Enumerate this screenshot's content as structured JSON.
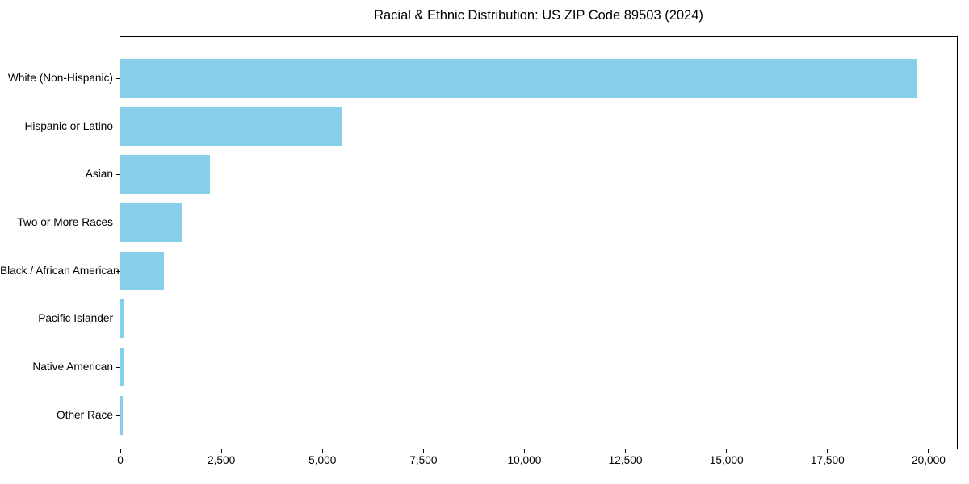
{
  "chart_data": {
    "type": "bar",
    "orientation": "horizontal",
    "title": "Racial & Ethnic Distribution: US ZIP Code 89503 (2024)",
    "xlabel": "",
    "ylabel": "",
    "categories": [
      "White (Non-Hispanic)",
      "Hispanic or Latino",
      "Asian",
      "Two or More Races",
      "Black / African American",
      "Pacific Islander",
      "Native American",
      "Other Race"
    ],
    "values": [
      19730,
      5470,
      2220,
      1540,
      1070,
      95,
      75,
      55
    ],
    "xlim": [
      0,
      20700
    ],
    "xticks": [
      0,
      2500,
      5000,
      7500,
      10000,
      12500,
      15000,
      17500,
      20000
    ],
    "xtick_labels": [
      "0",
      "2,500",
      "5,000",
      "7,500",
      "10,000",
      "12,500",
      "15,000",
      "17,500",
      "20,000"
    ],
    "bar_color": "#87CEEB",
    "axis_color": "#000000",
    "text_color": "#000000",
    "background_color": "#ffffff",
    "grid": false,
    "legend": null
  }
}
